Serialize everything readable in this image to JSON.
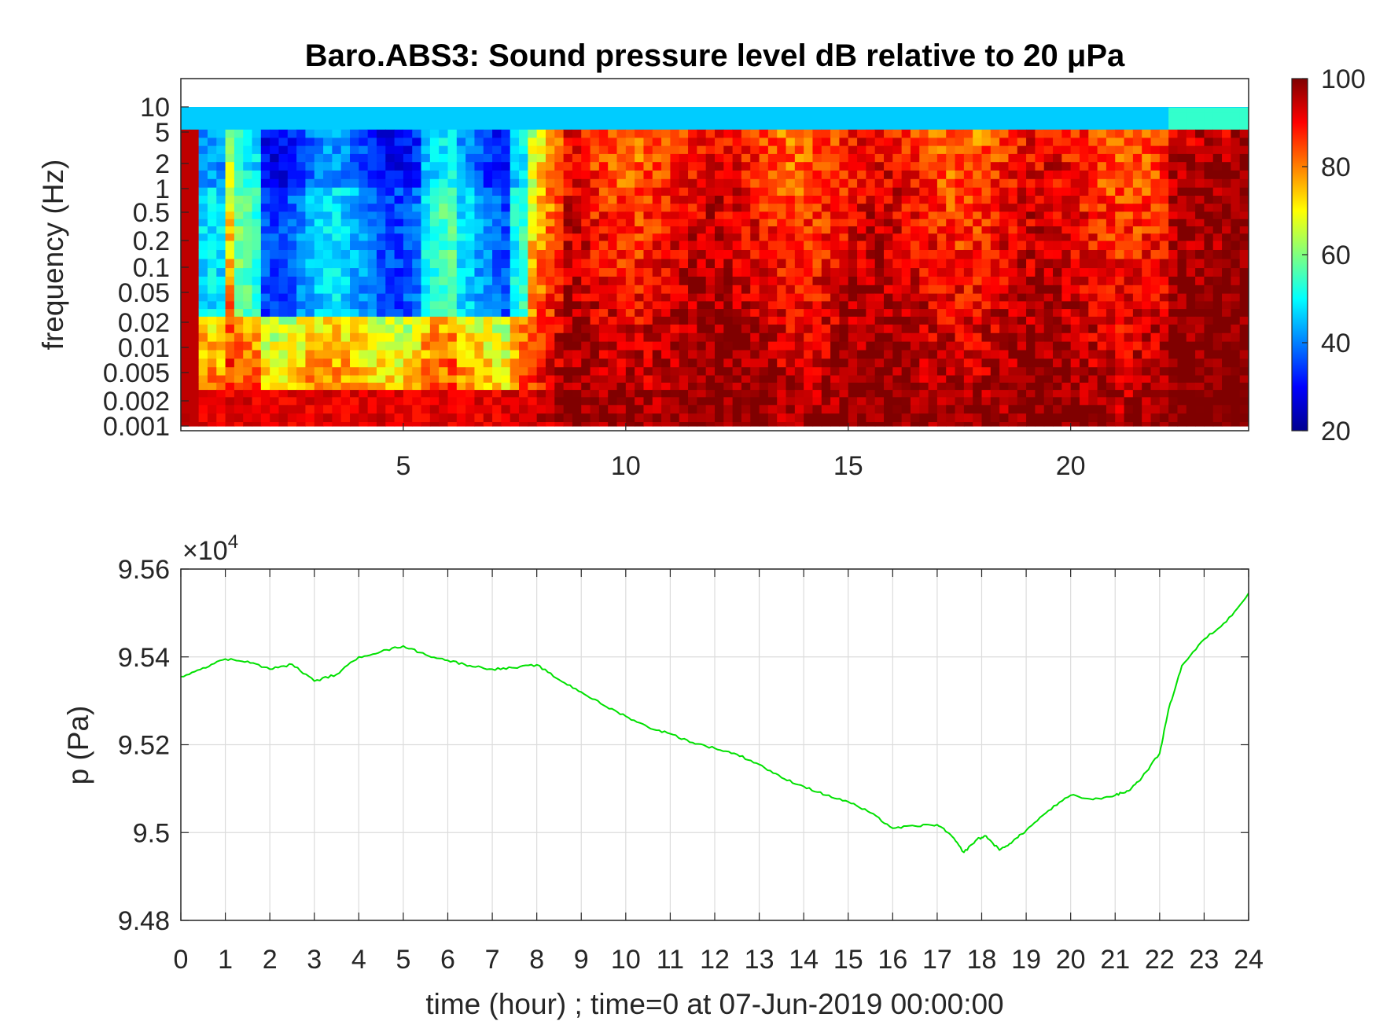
{
  "chart_data": [
    {
      "type": "heatmap",
      "title": "Baro.ABS3: Sound pressure level dB relative to 20 μPa",
      "ylabel": "frequency (Hz)",
      "yscale": "log",
      "y_ticks": [
        0.001,
        0.002,
        0.005,
        0.01,
        0.02,
        0.05,
        0.1,
        0.2,
        0.5,
        1,
        2,
        5,
        10
      ],
      "y_tick_labels": [
        "0.001",
        "0.002",
        "0.005",
        "0.01",
        "0.02",
        "0.05",
        "0.1",
        "0.2",
        "0.5",
        "1",
        "2",
        "5",
        "10"
      ],
      "xlim": [
        0,
        24
      ],
      "x_ticks": [
        5,
        10,
        15,
        20
      ],
      "x_tick_labels": [
        "5",
        "10",
        "15",
        "20"
      ],
      "colormap": "jet",
      "colorbar": {
        "range": [
          20,
          100
        ],
        "ticks": [
          20,
          40,
          60,
          80,
          100
        ],
        "tick_labels": [
          "20",
          "40",
          "60",
          "80",
          "100"
        ]
      }
    },
    {
      "type": "line",
      "xlabel": "time (hour) ; time=0 at 07-Jun-2019 00:00:00",
      "ylabel": "p (Pa)",
      "y_exponent_label": "×10",
      "y_exponent": "4",
      "xlim": [
        0,
        24
      ],
      "ylim": [
        94800,
        95600
      ],
      "x_ticks": [
        0,
        1,
        2,
        3,
        4,
        5,
        6,
        7,
        8,
        9,
        10,
        11,
        12,
        13,
        14,
        15,
        16,
        17,
        18,
        19,
        20,
        21,
        22,
        23,
        24
      ],
      "x_tick_labels": [
        "0",
        "1",
        "2",
        "3",
        "4",
        "5",
        "6",
        "7",
        "8",
        "9",
        "10",
        "11",
        "12",
        "13",
        "14",
        "15",
        "16",
        "17",
        "18",
        "19",
        "20",
        "21",
        "22",
        "23",
        "24"
      ],
      "y_ticks": [
        94800,
        95000,
        95200,
        95400,
        95600
      ],
      "y_tick_labels": [
        "9.48",
        "9.5",
        "9.52",
        "9.54",
        "9.56"
      ],
      "grid": true,
      "line_color": "#00e000",
      "series": [
        {
          "x": [
            0,
            0.5,
            1,
            1.5,
            2,
            2.5,
            3,
            3.5,
            4,
            4.5,
            5,
            5.5,
            6,
            6.5,
            7,
            7.5,
            8,
            8.5,
            9,
            9.5,
            10,
            10.5,
            11,
            11.5,
            12,
            12.5,
            13,
            13.5,
            14,
            14.5,
            15,
            15.5,
            16,
            16.5,
            17,
            17.3,
            17.6,
            17.9,
            18.1,
            18.4,
            18.7,
            19,
            19.5,
            20,
            20.5,
            21,
            21.3,
            21.6,
            22,
            22.2,
            22.5,
            23,
            23.5,
            24
          ],
          "y": [
            95355,
            95375,
            95395,
            95390,
            95372,
            95383,
            95345,
            95360,
            95400,
            95412,
            95425,
            95405,
            95392,
            95380,
            95372,
            95375,
            95382,
            95348,
            95320,
            95290,
            95265,
            95240,
            95225,
            95205,
            95192,
            95178,
            95155,
            95125,
            95105,
            95085,
            95070,
            95045,
            95010,
            95015,
            95018,
            94995,
            94955,
            94985,
            94992,
            94960,
            94980,
            95005,
            95050,
            95085,
            95075,
            95085,
            95095,
            95125,
            95180,
            95280,
            95380,
            95440,
            95480,
            95545
          ]
        }
      ]
    }
  ]
}
